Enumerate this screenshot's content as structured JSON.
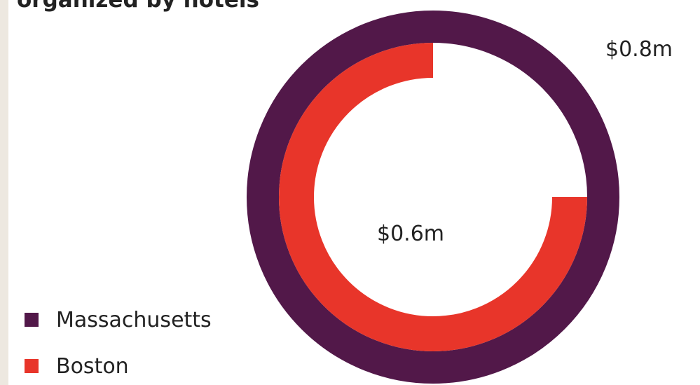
{
  "chart_data": {
    "type": "radial",
    "title": "organized by hotels",
    "series": [
      {
        "name": "Massachusetts",
        "color": "#521849",
        "values": [
          0.8
        ],
        "value_labels": [
          "$0.8m"
        ]
      },
      {
        "name": "Boston",
        "color": "#e8352a",
        "values": [
          0.6
        ],
        "value_labels": [
          "$0.6m"
        ]
      }
    ]
  }
}
